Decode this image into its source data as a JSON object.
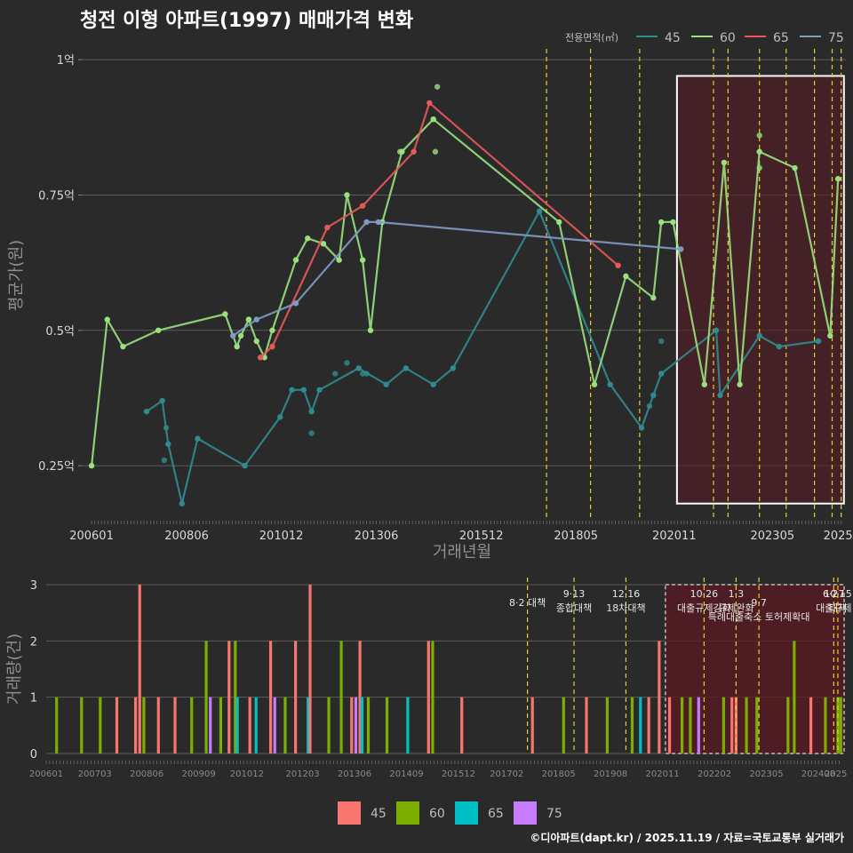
{
  "colors": {
    "s45": "#2f8b8f",
    "s60": "#99e07e",
    "s65": "#e8585a",
    "s75": "#7f9bc4",
    "b45": "#f8766d",
    "b60": "#7cae00",
    "b65": "#00bfc4",
    "b75": "#c77cff",
    "policy": "#e6d22a",
    "highlight": "#5a1a22"
  },
  "chart_data": [
    {
      "type": "line",
      "title": "청전 이형 아파트(1997) 매매가격 변화",
      "xlabel": "거래년월",
      "ylabel": "평균가(원)",
      "ylim": [
        0.15,
        1.02
      ],
      "y_ticks": [
        {
          "v": 0.25,
          "label": "0.25억"
        },
        {
          "v": 0.5,
          "label": "0.5억"
        },
        {
          "v": 0.75,
          "label": "0.75억"
        },
        {
          "v": 1.0,
          "label": "1억"
        }
      ],
      "x_range": [
        2005.75,
        2025.2
      ],
      "x_ticks": [
        {
          "v": 2006.0,
          "label": "200601"
        },
        {
          "v": 2008.42,
          "label": "200806"
        },
        {
          "v": 2010.83,
          "label": "201012"
        },
        {
          "v": 2013.25,
          "label": "201306"
        },
        {
          "v": 2015.92,
          "label": "201512"
        },
        {
          "v": 2018.33,
          "label": "201805"
        },
        {
          "v": 2020.83,
          "label": "202011"
        },
        {
          "v": 2023.33,
          "label": "202305"
        },
        {
          "v": 2025.0,
          "label": "2025"
        }
      ],
      "legend_title": "전용면적(㎡)",
      "legend": [
        "45",
        "60",
        "65",
        "75"
      ],
      "series": [
        {
          "name": "45",
          "color_key": "s45",
          "line": [
            [
              2007.4,
              0.35
            ],
            [
              2007.8,
              0.37
            ],
            [
              2007.95,
              0.29
            ],
            [
              2008.3,
              0.18
            ],
            [
              2008.7,
              0.3
            ],
            [
              2009.9,
              0.25
            ],
            [
              2010.8,
              0.34
            ],
            [
              2011.1,
              0.39
            ],
            [
              2011.4,
              0.39
            ],
            [
              2011.6,
              0.35
            ],
            [
              2011.8,
              0.39
            ],
            [
              2012.8,
              0.43
            ],
            [
              2013.5,
              0.4
            ],
            [
              2014.0,
              0.43
            ],
            [
              2014.7,
              0.4
            ],
            [
              2015.2,
              0.43
            ],
            [
              2017.4,
              0.72
            ],
            [
              2019.2,
              0.4
            ],
            [
              2020.0,
              0.32
            ],
            [
              2020.3,
              0.38
            ],
            [
              2020.5,
              0.42
            ],
            [
              2021.9,
              0.5
            ],
            [
              2022.0,
              0.38
            ],
            [
              2023.0,
              0.49
            ],
            [
              2023.5,
              0.47
            ],
            [
              2024.5,
              0.48
            ]
          ],
          "points": [
            [
              2007.9,
              0.32
            ],
            [
              2007.85,
              0.26
            ],
            [
              2011.6,
              0.31
            ],
            [
              2012.2,
              0.42
            ],
            [
              2012.5,
              0.44
            ],
            [
              2012.9,
              0.42
            ],
            [
              2013.0,
              0.42
            ],
            [
              2020.5,
              0.48
            ],
            [
              2020.2,
              0.36
            ]
          ]
        },
        {
          "name": "60",
          "color_key": "s60",
          "line": [
            [
              2006.0,
              0.25
            ],
            [
              2006.4,
              0.52
            ],
            [
              2006.8,
              0.47
            ],
            [
              2007.7,
              0.5
            ],
            [
              2009.4,
              0.53
            ],
            [
              2009.7,
              0.47
            ],
            [
              2009.8,
              0.49
            ],
            [
              2010.0,
              0.52
            ],
            [
              2010.2,
              0.48
            ],
            [
              2010.4,
              0.45
            ],
            [
              2010.6,
              0.5
            ],
            [
              2011.2,
              0.63
            ],
            [
              2011.5,
              0.67
            ],
            [
              2011.9,
              0.66
            ],
            [
              2012.3,
              0.63
            ],
            [
              2012.5,
              0.75
            ],
            [
              2012.9,
              0.63
            ],
            [
              2013.1,
              0.5
            ],
            [
              2013.4,
              0.7
            ],
            [
              2013.9,
              0.83
            ],
            [
              2014.7,
              0.89
            ],
            [
              2017.9,
              0.7
            ],
            [
              2018.8,
              0.4
            ],
            [
              2019.6,
              0.6
            ],
            [
              2020.3,
              0.56
            ],
            [
              2020.5,
              0.7
            ],
            [
              2020.8,
              0.7
            ],
            [
              2021.6,
              0.4
            ],
            [
              2022.1,
              0.81
            ],
            [
              2022.5,
              0.4
            ],
            [
              2023.0,
              0.83
            ],
            [
              2023.9,
              0.8
            ],
            [
              2024.8,
              0.49
            ],
            [
              2025.0,
              0.78
            ]
          ],
          "points": [
            [
              2013.85,
              0.83
            ],
            [
              2014.8,
              0.95
            ],
            [
              2014.75,
              0.83
            ],
            [
              2023.0,
              0.86
            ],
            [
              2023.0,
              0.8
            ],
            [
              2010.0,
              0.52
            ]
          ]
        },
        {
          "name": "65",
          "color_key": "s65",
          "line": [
            [
              2010.3,
              0.45
            ],
            [
              2010.6,
              0.47
            ],
            [
              2012.0,
              0.69
            ],
            [
              2012.9,
              0.73
            ],
            [
              2014.2,
              0.83
            ],
            [
              2014.6,
              0.92
            ],
            [
              2019.4,
              0.62
            ]
          ],
          "points": []
        },
        {
          "name": "75",
          "color_key": "s75",
          "line": [
            [
              2009.6,
              0.49
            ],
            [
              2010.2,
              0.52
            ],
            [
              2011.2,
              0.55
            ],
            [
              2013.0,
              0.7
            ],
            [
              2013.3,
              0.7
            ],
            [
              2021.0,
              0.65
            ]
          ],
          "points": []
        }
      ],
      "policy_lines": [
        2017.58,
        2018.7,
        2019.95,
        2021.83,
        2022.2,
        2023.0,
        2023.68,
        2024.4,
        2024.85,
        2025.08
      ],
      "highlight_range": [
        2020.9,
        2025.15
      ]
    },
    {
      "type": "bar",
      "ylabel": "거래량(건)",
      "ylim": [
        0,
        3
      ],
      "y_ticks": [
        0,
        1,
        2,
        3
      ],
      "x_range": [
        2006.0,
        2025.2
      ],
      "x_ticks": [
        {
          "v": 2006.0,
          "label": "200601"
        },
        {
          "v": 2007.17,
          "label": "200703"
        },
        {
          "v": 2008.42,
          "label": "200806"
        },
        {
          "v": 2009.67,
          "label": "200909"
        },
        {
          "v": 2010.83,
          "label": "201012"
        },
        {
          "v": 2012.17,
          "label": "201203"
        },
        {
          "v": 2013.42,
          "label": "201306"
        },
        {
          "v": 2014.67,
          "label": "201409"
        },
        {
          "v": 2015.92,
          "label": "201512"
        },
        {
          "v": 2017.08,
          "label": "201702"
        },
        {
          "v": 2018.33,
          "label": "201805"
        },
        {
          "v": 2019.58,
          "label": "201908"
        },
        {
          "v": 2020.83,
          "label": "202011"
        },
        {
          "v": 2022.08,
          "label": "202202"
        },
        {
          "v": 2023.33,
          "label": "202305"
        },
        {
          "v": 2024.58,
          "label": "202408"
        },
        {
          "v": 2025.0,
          "label": "2025"
        }
      ],
      "legend": [
        "45",
        "60",
        "65",
        "75"
      ],
      "bars": [
        {
          "x": 2006.25,
          "s": "60",
          "v": 1
        },
        {
          "x": 2006.85,
          "s": "60",
          "v": 1
        },
        {
          "x": 2007.3,
          "s": "60",
          "v": 1
        },
        {
          "x": 2007.7,
          "s": "45",
          "v": 1
        },
        {
          "x": 2008.15,
          "s": "45",
          "v": 1
        },
        {
          "x": 2008.25,
          "s": "45",
          "v": 3
        },
        {
          "x": 2008.35,
          "s": "60",
          "v": 1
        },
        {
          "x": 2008.7,
          "s": "45",
          "v": 1
        },
        {
          "x": 2009.1,
          "s": "45",
          "v": 1
        },
        {
          "x": 2009.5,
          "s": "60",
          "v": 1
        },
        {
          "x": 2009.85,
          "s": "60",
          "v": 2
        },
        {
          "x": 2009.95,
          "s": "75",
          "v": 1
        },
        {
          "x": 2010.2,
          "s": "60",
          "v": 1
        },
        {
          "x": 2010.4,
          "s": "45",
          "v": 2
        },
        {
          "x": 2010.55,
          "s": "60",
          "v": 2
        },
        {
          "x": 2010.6,
          "s": "65",
          "v": 1
        },
        {
          "x": 2010.9,
          "s": "45",
          "v": 1
        },
        {
          "x": 2011.05,
          "s": "65",
          "v": 1
        },
        {
          "x": 2011.4,
          "s": "45",
          "v": 2
        },
        {
          "x": 2011.5,
          "s": "75",
          "v": 1
        },
        {
          "x": 2011.75,
          "s": "60",
          "v": 1
        },
        {
          "x": 2012.0,
          "s": "45",
          "v": 2
        },
        {
          "x": 2012.3,
          "s": "65",
          "v": 1
        },
        {
          "x": 2012.35,
          "s": "45",
          "v": 3
        },
        {
          "x": 2012.8,
          "s": "60",
          "v": 1
        },
        {
          "x": 2013.1,
          "s": "60",
          "v": 2
        },
        {
          "x": 2013.35,
          "s": "45",
          "v": 1
        },
        {
          "x": 2013.45,
          "s": "75",
          "v": 1
        },
        {
          "x": 2013.55,
          "s": "45",
          "v": 2
        },
        {
          "x": 2013.6,
          "s": "65",
          "v": 1
        },
        {
          "x": 2013.75,
          "s": "60",
          "v": 1
        },
        {
          "x": 2014.2,
          "s": "60",
          "v": 1
        },
        {
          "x": 2014.7,
          "s": "65",
          "v": 1
        },
        {
          "x": 2015.2,
          "s": "45",
          "v": 2
        },
        {
          "x": 2015.3,
          "s": "60",
          "v": 2
        },
        {
          "x": 2016.0,
          "s": "45",
          "v": 1
        },
        {
          "x": 2017.7,
          "s": "45",
          "v": 1
        },
        {
          "x": 2018.45,
          "s": "60",
          "v": 1
        },
        {
          "x": 2019.0,
          "s": "45",
          "v": 1
        },
        {
          "x": 2019.5,
          "s": "60",
          "v": 1
        },
        {
          "x": 2020.1,
          "s": "60",
          "v": 1
        },
        {
          "x": 2020.3,
          "s": "65",
          "v": 1
        },
        {
          "x": 2020.5,
          "s": "45",
          "v": 1
        },
        {
          "x": 2020.75,
          "s": "45",
          "v": 2
        },
        {
          "x": 2021.0,
          "s": "45",
          "v": 1
        },
        {
          "x": 2021.3,
          "s": "60",
          "v": 1
        },
        {
          "x": 2021.5,
          "s": "60",
          "v": 1
        },
        {
          "x": 2021.7,
          "s": "75",
          "v": 1
        },
        {
          "x": 2022.3,
          "s": "60",
          "v": 1
        },
        {
          "x": 2022.5,
          "s": "45",
          "v": 1
        },
        {
          "x": 2022.6,
          "s": "45",
          "v": 1
        },
        {
          "x": 2022.85,
          "s": "60",
          "v": 1
        },
        {
          "x": 2023.1,
          "s": "60",
          "v": 1
        },
        {
          "x": 2023.85,
          "s": "60",
          "v": 1
        },
        {
          "x": 2024.0,
          "s": "60",
          "v": 2
        },
        {
          "x": 2024.4,
          "s": "45",
          "v": 1
        },
        {
          "x": 2024.75,
          "s": "60",
          "v": 1
        },
        {
          "x": 2025.05,
          "s": "60",
          "v": 1
        },
        {
          "x": 2025.12,
          "s": "60",
          "v": 1
        }
      ],
      "policy_lines": [
        2017.58,
        2018.7,
        2019.95,
        2021.83,
        2022.6,
        2023.15,
        2024.95,
        2025.05
      ],
      "highlight_range": [
        2020.9,
        2025.2
      ],
      "annotations": [
        {
          "x": 2017.58,
          "lines": [
            "8·2 대책"
          ],
          "row": 1
        },
        {
          "x": 2018.7,
          "lines": [
            "9·13",
            "종합대책"
          ],
          "row": 0
        },
        {
          "x": 2019.95,
          "lines": [
            "12·16",
            "18차대책"
          ],
          "row": 0
        },
        {
          "x": 2021.83,
          "lines": [
            "10·26",
            "대출규제강화"
          ],
          "row": 0
        },
        {
          "x": 2022.6,
          "lines": [
            "1·3",
            "규제완화"
          ],
          "row": 0
        },
        {
          "x": 2023.15,
          "lines": [
            "9·7",
            "특례대출축소 토허제확대"
          ],
          "row": 1
        },
        {
          "x": 2024.95,
          "lines": [
            "6·27",
            "대출규제"
          ],
          "row": 0
        },
        {
          "x": 2025.05,
          "lines": [
            "10·15",
            "대책"
          ],
          "row": 0
        }
      ]
    }
  ],
  "credit": "©디아파트(dapt.kr) / 2025.11.19 / 자료=국토교통부 실거래가"
}
